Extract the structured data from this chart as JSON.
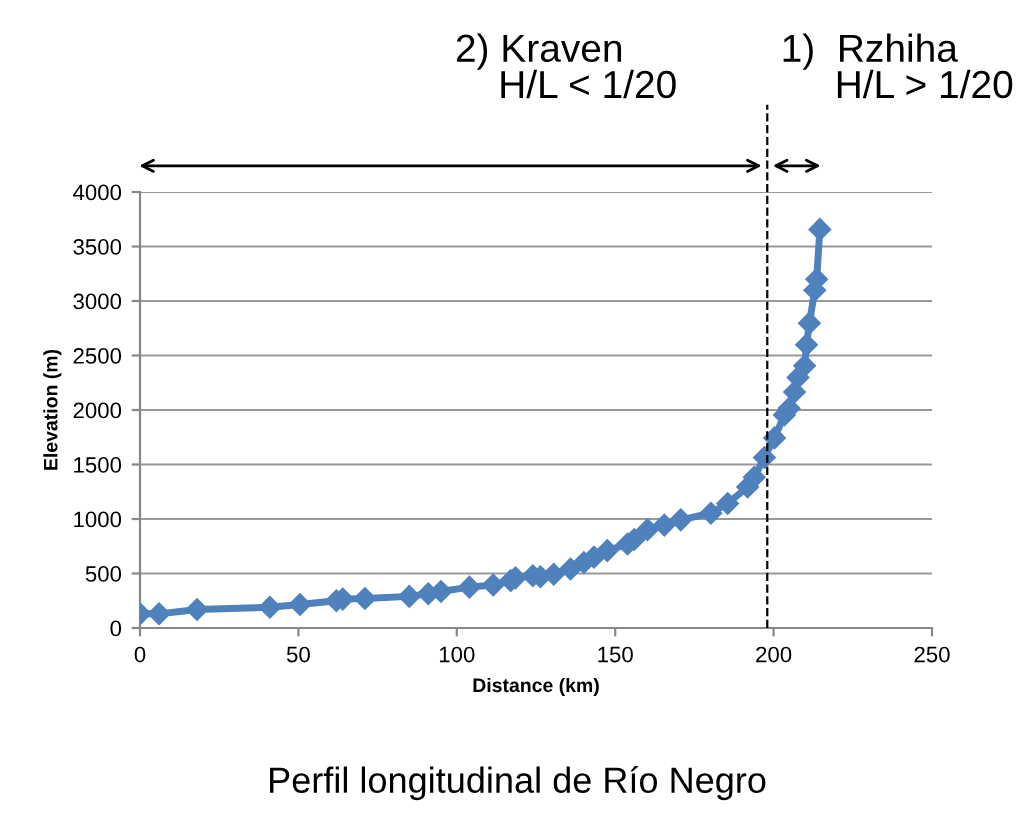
{
  "chart_data": {
    "type": "line",
    "xlabel": "Distance (km)",
    "ylabel": "Elevation (m)",
    "series": [
      {
        "color": "#4f81bd",
        "marker": "diamond",
        "x": [
          0,
          6,
          18,
          41,
          50.5,
          62,
          64,
          71,
          85,
          91,
          95,
          104,
          111.5,
          117,
          118.5,
          124,
          126.4,
          130.6,
          135.9,
          140.1,
          143.3,
          147.5,
          153.9,
          156,
          160.2,
          165.5,
          170.7,
          180.2,
          185.5,
          191.8,
          193.9,
          197.1,
          200.3,
          203.4,
          204.9,
          206.6,
          207.7,
          209.8,
          210.4,
          211.3,
          213,
          213.6,
          214.6
        ],
        "values": [
          130,
          130,
          170,
          190,
          215,
          250,
          265,
          270,
          290,
          315,
          335,
          375,
          395,
          435,
          460,
          480,
          470,
          493,
          541,
          601,
          650,
          710,
          770,
          812,
          902,
          944,
          992,
          1053,
          1143,
          1293,
          1383,
          1564,
          1744,
          1955,
          2015,
          2165,
          2298,
          2406,
          2598,
          2797,
          3098,
          3200,
          3657
        ]
      }
    ],
    "xlim": [
      0,
      250
    ],
    "xticks": [
      0,
      50,
      100,
      150,
      200,
      250
    ],
    "ylim": [
      0,
      4000
    ],
    "yticks": [
      0,
      500,
      1000,
      1500,
      2000,
      2500,
      3000,
      3500,
      4000
    ],
    "grid": "y",
    "legend": false,
    "ref_lines": [
      {
        "axis": "x",
        "value": 198,
        "line_style": "dashed",
        "color": "#000000"
      }
    ],
    "annotations": [
      "2) Kraven\n    H/L < 1/20",
      "1)  Rzhiha\n     H/L > 1/20",
      "Perfil longitudinal de Río Negro"
    ]
  }
}
